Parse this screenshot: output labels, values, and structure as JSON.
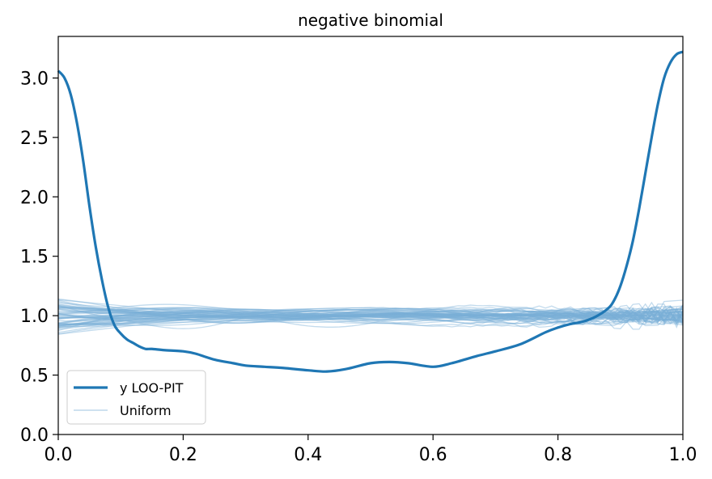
{
  "chart_data": {
    "type": "line",
    "title": "negative binomial",
    "xlabel": "",
    "ylabel": "",
    "xlim": [
      0.0,
      1.0
    ],
    "ylim": [
      0.0,
      3.35
    ],
    "x_ticks": [
      "0.0",
      "0.2",
      "0.4",
      "0.6",
      "0.8",
      "1.0"
    ],
    "y_ticks": [
      "0.0",
      "0.5",
      "1.0",
      "1.5",
      "2.0",
      "2.5",
      "3.0"
    ],
    "grid": false,
    "legend": {
      "placement": "lower-left",
      "entries": [
        "y LOO-PIT",
        "Uniform"
      ]
    },
    "colors": {
      "main": "#1f77b4",
      "uniform": "#7bafd6"
    },
    "series": [
      {
        "name": "y LOO-PIT",
        "x": [
          0.0,
          0.01,
          0.02,
          0.03,
          0.04,
          0.05,
          0.06,
          0.07,
          0.08,
          0.09,
          0.1,
          0.11,
          0.12,
          0.13,
          0.14,
          0.15,
          0.17,
          0.2,
          0.22,
          0.25,
          0.28,
          0.3,
          0.33,
          0.36,
          0.4,
          0.43,
          0.46,
          0.5,
          0.53,
          0.56,
          0.6,
          0.63,
          0.67,
          0.7,
          0.74,
          0.78,
          0.8,
          0.82,
          0.84,
          0.86,
          0.88,
          0.89,
          0.9,
          0.91,
          0.92,
          0.93,
          0.94,
          0.95,
          0.96,
          0.97,
          0.98,
          0.99,
          1.0
        ],
        "values": [
          3.06,
          3.0,
          2.86,
          2.62,
          2.3,
          1.92,
          1.58,
          1.3,
          1.07,
          0.92,
          0.85,
          0.8,
          0.77,
          0.74,
          0.72,
          0.72,
          0.71,
          0.7,
          0.68,
          0.63,
          0.6,
          0.58,
          0.57,
          0.56,
          0.54,
          0.53,
          0.55,
          0.6,
          0.61,
          0.6,
          0.57,
          0.6,
          0.66,
          0.7,
          0.76,
          0.86,
          0.9,
          0.93,
          0.95,
          0.99,
          1.06,
          1.13,
          1.25,
          1.42,
          1.63,
          1.9,
          2.2,
          2.5,
          2.78,
          3.0,
          3.13,
          3.2,
          3.22
        ]
      },
      {
        "name": "Uniform",
        "realizations": 60,
        "typical_range": [
          0.8,
          1.22
        ]
      }
    ]
  }
}
